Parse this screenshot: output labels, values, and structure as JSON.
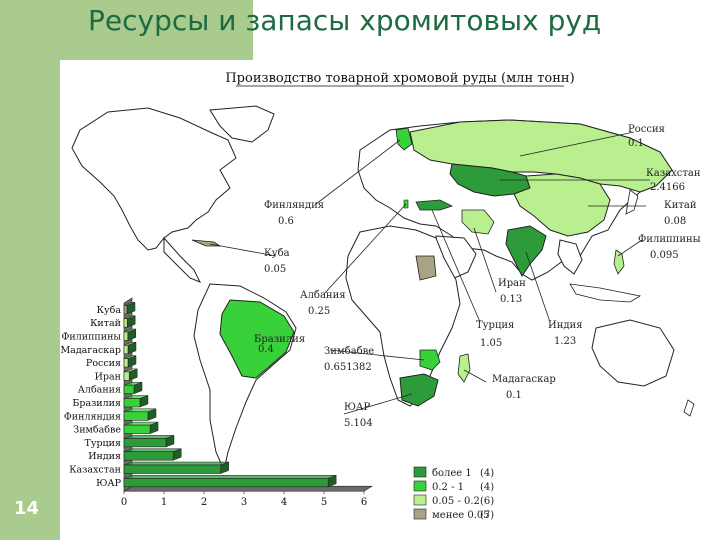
{
  "slide": {
    "title": "Ресурсы и запасы хромитовых руд",
    "number": "14"
  },
  "map": {
    "title": "Производство товарной хромовой руды (млн тонн)",
    "annotations": [
      {
        "country": "Россия",
        "value": "0.1"
      },
      {
        "country": "Казахстан",
        "value": "2.4166"
      },
      {
        "country": "Китай",
        "value": "0.08"
      },
      {
        "country": "Филиппины",
        "value": "0.095"
      },
      {
        "country": "Финляндия",
        "value": "0.6"
      },
      {
        "country": "Куба",
        "value": "0.05"
      },
      {
        "country": "Албания",
        "value": "0.25"
      },
      {
        "country": "Иран",
        "value": "0.13"
      },
      {
        "country": "Турция",
        "value": "1.05"
      },
      {
        "country": "Индия",
        "value": "1.23"
      },
      {
        "country": "Бразилия",
        "value": "0.4"
      },
      {
        "country": "Зимбабве",
        "value": "0.651382"
      },
      {
        "country": "Мадагаскар",
        "value": "0.1"
      },
      {
        "country": "ЮАР",
        "value": "5.104"
      }
    ],
    "legend": [
      {
        "label": "более 1",
        "count": "(4)",
        "color": "#2e9b3a"
      },
      {
        "label": "0.2 - 1",
        "count": "(4)",
        "color": "#39d13a"
      },
      {
        "label": "0.05 - 0.2",
        "count": "(6)",
        "color": "#b9ef8f"
      },
      {
        "label": "менее 0.05",
        "count": "(7)",
        "color": "#a8a383"
      }
    ],
    "colors": {
      "ocean": "#ffffff",
      "land": "#ffffff",
      "outline": "#222222",
      "dark_green": "#2e9b3a",
      "medium_green": "#39d13a",
      "light_green": "#b9ef8f",
      "tan": "#a8a383"
    }
  },
  "chart_data": {
    "type": "bar",
    "orientation": "horizontal",
    "categories": [
      "Куба",
      "Китай",
      "Филиппины",
      "Мадагаскар",
      "Россия",
      "Иран",
      "Албания",
      "Бразилия",
      "Финляндия",
      "Зимбабве",
      "Турция",
      "Индия",
      "Казахстан",
      "ЮАР"
    ],
    "values": [
      0.05,
      0.08,
      0.095,
      0.1,
      0.1,
      0.13,
      0.25,
      0.4,
      0.6,
      0.651382,
      1.05,
      1.23,
      2.4166,
      5.104
    ],
    "xlim": [
      0,
      6
    ],
    "xticks": [
      "0",
      "1",
      "2",
      "3",
      "4",
      "5",
      "6"
    ],
    "bar_colors": [
      "#a8a383",
      "#b9ef8f",
      "#b9ef8f",
      "#b9ef8f",
      "#b9ef8f",
      "#b9ef8f",
      "#39d13a",
      "#39d13a",
      "#39d13a",
      "#39d13a",
      "#2e9b3a",
      "#2e9b3a",
      "#2e9b3a",
      "#2e9b3a"
    ],
    "style": "3d"
  }
}
